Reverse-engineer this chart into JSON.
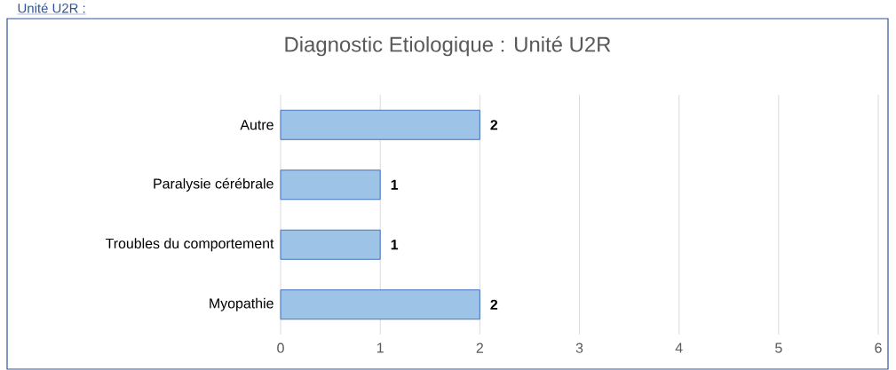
{
  "chart_data": {
    "type": "bar",
    "orientation": "horizontal",
    "title": "Diagnostic Etiologique : Unité U2R",
    "annotations": [
      "Unité U2R :"
    ],
    "categories": [
      "Autre",
      "Paralysie cérébrale",
      "Troubles du comportement",
      "Myopathie"
    ],
    "values": [
      2,
      1,
      1,
      2
    ],
    "color": "#9dc3e6",
    "xlim": [
      0,
      6
    ],
    "xticks": [
      0,
      1,
      2,
      3,
      4,
      5,
      6
    ],
    "grid": "x",
    "data_labels": true
  }
}
